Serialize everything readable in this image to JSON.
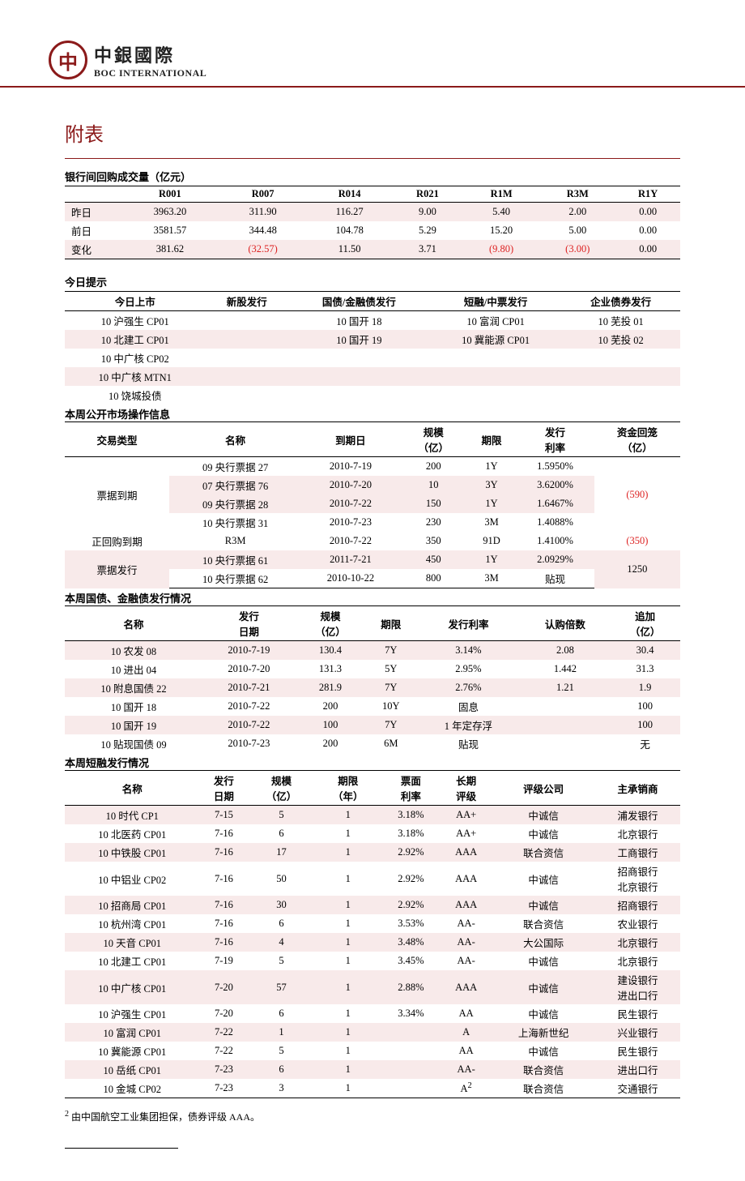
{
  "logo": {
    "cn": "中銀國際",
    "en": "BOC INTERNATIONAL"
  },
  "title": "附表",
  "repo": {
    "title": "银行间回购成交量（亿元）",
    "columns": [
      "",
      "R001",
      "R007",
      "R014",
      "R021",
      "R1M",
      "R3M",
      "R1Y"
    ],
    "rows": [
      {
        "label": "昨日",
        "v": [
          "3963.20",
          "311.90",
          "116.27",
          "9.00",
          "5.40",
          "2.00",
          "0.00"
        ],
        "neg": [
          false,
          false,
          false,
          false,
          false,
          false,
          false
        ]
      },
      {
        "label": "前日",
        "v": [
          "3581.57",
          "344.48",
          "104.78",
          "5.29",
          "15.20",
          "5.00",
          "0.00"
        ],
        "neg": [
          false,
          false,
          false,
          false,
          false,
          false,
          false
        ]
      },
      {
        "label": "变化",
        "v": [
          "381.62",
          "(32.57)",
          "11.50",
          "3.71",
          "(9.80)",
          "(3.00)",
          "0.00"
        ],
        "neg": [
          false,
          true,
          false,
          false,
          true,
          true,
          false
        ]
      }
    ]
  },
  "tips": {
    "title": "今日提示",
    "columns": [
      "今日上市",
      "新股发行",
      "国债/金融债发行",
      "短融/中票发行",
      "企业债券发行"
    ],
    "rows": [
      [
        "10 沪强生 CP01",
        "",
        "10 国开 18",
        "10 富润 CP01",
        "10 芜投 01"
      ],
      [
        "10 北建工 CP01",
        "",
        "10 国开 19",
        "10 冀能源 CP01",
        "10 芜投 02"
      ],
      [
        "10 中广核 CP02",
        "",
        "",
        "",
        ""
      ],
      [
        "10 中广核 MTN1",
        "",
        "",
        "",
        ""
      ],
      [
        "10 饶城投债",
        "",
        "",
        "",
        ""
      ]
    ]
  },
  "omo": {
    "title": "本周公开市场操作信息",
    "columns": [
      "交易类型",
      "名称",
      "到期日",
      "规模（亿）",
      "期限",
      "发行利率",
      "资金回笼（亿）"
    ],
    "groups": [
      {
        "type": "票据到期",
        "rowspan": 4,
        "recall": "(590)",
        "recall_neg": true,
        "items": [
          {
            "name": "09 央行票据 27",
            "date": "2010-7-19",
            "size": "200",
            "term": "1Y",
            "rate": "1.5950%"
          },
          {
            "name": "07 央行票据 76",
            "date": "2010-7-20",
            "size": "10",
            "term": "3Y",
            "rate": "3.6200%"
          },
          {
            "name": "09 央行票据 28",
            "date": "2010-7-22",
            "size": "150",
            "term": "1Y",
            "rate": "1.6467%"
          },
          {
            "name": "10 央行票据 31",
            "date": "2010-7-23",
            "size": "230",
            "term": "3M",
            "rate": "1.4088%"
          }
        ]
      },
      {
        "type": "正回购到期",
        "rowspan": 1,
        "recall": "(350)",
        "recall_neg": true,
        "items": [
          {
            "name": "R3M",
            "date": "2010-7-22",
            "size": "350",
            "term": "91D",
            "rate": "1.4100%"
          }
        ]
      },
      {
        "type": "票据发行",
        "rowspan": 2,
        "recall": "1250",
        "recall_neg": false,
        "items": [
          {
            "name": "10 央行票据 61",
            "date": "2011-7-21",
            "size": "450",
            "term": "1Y",
            "rate": "2.0929%"
          },
          {
            "name": "10 央行票据 62",
            "date": "2010-10-22",
            "size": "800",
            "term": "3M",
            "rate": "贴现"
          }
        ]
      }
    ]
  },
  "bond": {
    "title": "本周国债、金融债发行情况",
    "columns": [
      "名称",
      "发行日期",
      "规模（亿）",
      "期限",
      "发行利率",
      "认购倍数",
      "追加（亿）"
    ],
    "rows": [
      [
        "10 农发 08",
        "2010-7-19",
        "130.4",
        "7Y",
        "3.14%",
        "2.08",
        "30.4"
      ],
      [
        "10 进出 04",
        "2010-7-20",
        "131.3",
        "5Y",
        "2.95%",
        "1.442",
        "31.3"
      ],
      [
        "10 附息国债 22",
        "2010-7-21",
        "281.9",
        "7Y",
        "2.76%",
        "1.21",
        "1.9"
      ],
      [
        "10 国开 18",
        "2010-7-22",
        "200",
        "10Y",
        "固息",
        "",
        "100"
      ],
      [
        "10 国开 19",
        "2010-7-22",
        "100",
        "7Y",
        "1 年定存浮",
        "",
        "100"
      ],
      [
        "10 贴现国债 09",
        "2010-7-23",
        "200",
        "6M",
        "贴现",
        "",
        "无"
      ]
    ]
  },
  "cp": {
    "title": "本周短融发行情况",
    "columns": [
      "名称",
      "发行日期",
      "规模（亿）",
      "期限（年）",
      "票面利率",
      "长期评级",
      "评级公司",
      "主承销商"
    ],
    "rows": [
      [
        "10 时代 CP1",
        "7-15",
        "5",
        "1",
        "3.18%",
        "AA+",
        "中诚信",
        "浦发银行"
      ],
      [
        "10 北医药 CP01",
        "7-16",
        "6",
        "1",
        "3.18%",
        "AA+",
        "中诚信",
        "北京银行"
      ],
      [
        "10 中铁股 CP01",
        "7-16",
        "17",
        "1",
        "2.92%",
        "AAA",
        "联合资信",
        "工商银行"
      ],
      [
        "10 中铝业 CP02",
        "7-16",
        "50",
        "1",
        "2.92%",
        "AAA",
        "中诚信",
        "招商银行 北京银行"
      ],
      [
        "10 招商局 CP01",
        "7-16",
        "30",
        "1",
        "2.92%",
        "AAA",
        "中诚信",
        "招商银行"
      ],
      [
        "10 杭州湾 CP01",
        "7-16",
        "6",
        "1",
        "3.53%",
        "AA-",
        "联合资信",
        "农业银行"
      ],
      [
        "10 天音 CP01",
        "7-16",
        "4",
        "1",
        "3.48%",
        "AA-",
        "大公国际",
        "北京银行"
      ],
      [
        "10 北建工 CP01",
        "7-19",
        "5",
        "1",
        "3.45%",
        "AA-",
        "中诚信",
        "北京银行"
      ],
      [
        "10 中广核 CP01",
        "7-20",
        "57",
        "1",
        "2.88%",
        "AAA",
        "中诚信",
        "建设银行 进出口行"
      ],
      [
        "10 沪强生 CP01",
        "7-20",
        "6",
        "1",
        "3.34%",
        "AA",
        "中诚信",
        "民生银行"
      ],
      [
        "10 富润 CP01",
        "7-22",
        "1",
        "1",
        "",
        "A",
        "上海新世纪",
        "兴业银行"
      ],
      [
        "10 冀能源 CP01",
        "7-22",
        "5",
        "1",
        "",
        "AA",
        "中诚信",
        "民生银行"
      ],
      [
        "10 岳纸 CP01",
        "7-23",
        "6",
        "1",
        "",
        "AA-",
        "联合资信",
        "进出口行"
      ],
      [
        "10 金城 CP02",
        "7-23",
        "3",
        "1",
        "",
        "A²",
        "联合资信",
        "交通银行"
      ]
    ]
  },
  "footnote": {
    "marker": "2",
    "text": "由中国航空工业集团担保，债券评级 AAA。"
  }
}
